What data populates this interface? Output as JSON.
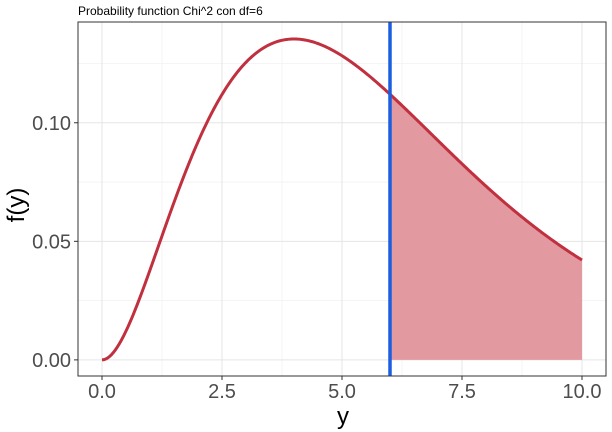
{
  "chart_data": {
    "type": "line",
    "title": "Probability function Chi^2 con df=6",
    "xlabel": "y",
    "ylabel": "f(y)",
    "distribution": "chi-squared",
    "df": 6,
    "xlim": [
      -0.5,
      10.5
    ],
    "ylim": [
      -0.0068,
      0.1425
    ],
    "x_ticks": [
      0.0,
      2.5,
      5.0,
      7.5,
      10.0
    ],
    "x_tick_labels": [
      "0.0",
      "2.5",
      "5.0",
      "7.5",
      "10.0"
    ],
    "y_ticks": [
      0.0,
      0.05,
      0.1
    ],
    "y_tick_labels": [
      "0.00",
      "0.05",
      "0.10"
    ],
    "x_range": [
      0,
      10
    ],
    "cutoff": 6,
    "shaded_region": [
      6,
      10
    ],
    "curve_color": "#c0303f",
    "shade_color": "#e2999f",
    "cutoff_color": "#1a5fe0",
    "grid": true,
    "legend": "none"
  }
}
